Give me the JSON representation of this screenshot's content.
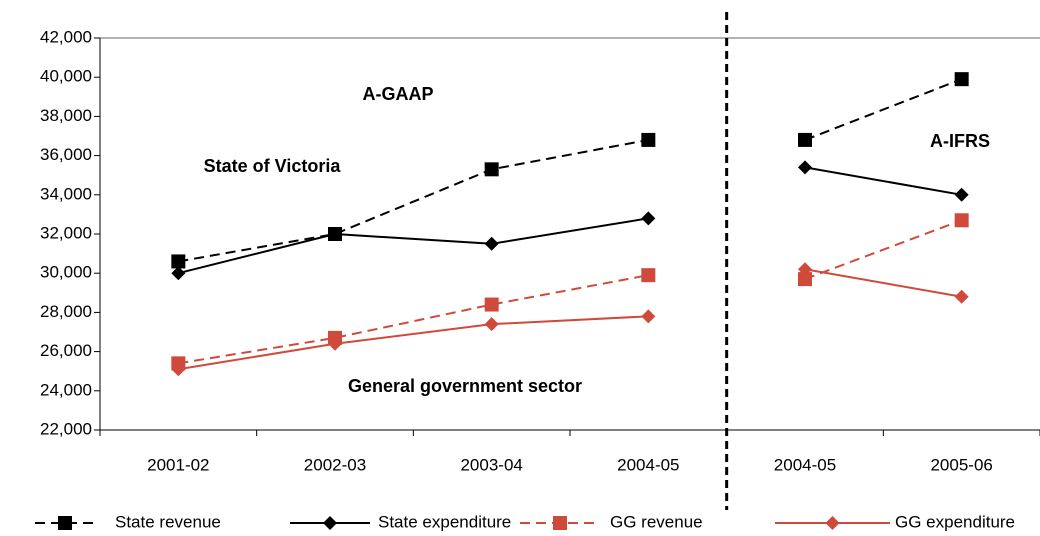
{
  "chart_data": {
    "type": "line",
    "categories": [
      "2001-02",
      "2002-03",
      "2003-04",
      "2004-05",
      "2004-05",
      "2005-06"
    ],
    "divider_after_category": 3,
    "series": [
      {
        "name": "State revenue",
        "color": "#000000",
        "marker": "square",
        "dashed": true,
        "values": [
          30600,
          32000,
          35300,
          36800,
          36800,
          39900
        ]
      },
      {
        "name": "State expenditure",
        "color": "#000000",
        "marker": "diamond",
        "dashed": false,
        "values": [
          30000,
          32000,
          31500,
          32800,
          35400,
          34000
        ]
      },
      {
        "name": "GG revenue",
        "color": "#d04a3c",
        "marker": "square",
        "dashed": true,
        "values": [
          25400,
          26700,
          28400,
          29900,
          29700,
          32700
        ]
      },
      {
        "name": "GG expenditure",
        "color": "#d04a3c",
        "marker": "diamond",
        "dashed": false,
        "values": [
          25100,
          26400,
          27400,
          27800,
          30200,
          28800
        ]
      }
    ],
    "annotations": [
      "A-GAAP",
      "State of Victoria",
      "General government sector",
      "A-IFRS"
    ],
    "ylim": [
      22000,
      42000
    ],
    "yticks": [
      {
        "value": 22000,
        "label": "22,000"
      },
      {
        "value": 24000,
        "label": "24,000"
      },
      {
        "value": 26000,
        "label": "26,000"
      },
      {
        "value": 28000,
        "label": "28,000"
      },
      {
        "value": 30000,
        "label": "30,000"
      },
      {
        "value": 32000,
        "label": "32,000"
      },
      {
        "value": 34000,
        "label": "34,000"
      },
      {
        "value": 36000,
        "label": "36,000"
      },
      {
        "value": 38000,
        "label": "38,000"
      },
      {
        "value": 40000,
        "label": "40,000"
      },
      {
        "value": 42000,
        "label": "42,000"
      }
    ],
    "legend": "bottom"
  }
}
